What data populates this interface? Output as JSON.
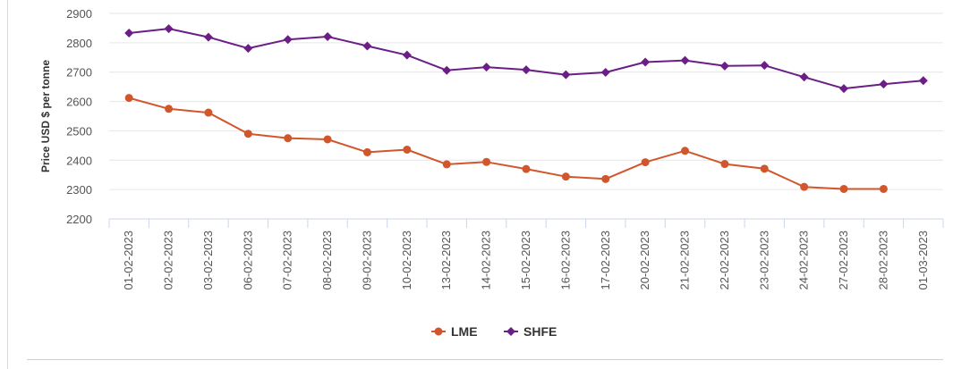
{
  "chart_data": {
    "type": "line",
    "title": "",
    "xlabel": "",
    "ylabel": "Price USD $ per tonne",
    "ylim": [
      2200,
      2900
    ],
    "yticks": [
      2200,
      2300,
      2400,
      2500,
      2600,
      2700,
      2800,
      2900
    ],
    "grid": true,
    "legend_position": "bottom-center",
    "categories": [
      "01-02-2023",
      "02-02-2023",
      "03-02-2023",
      "06-02-2023",
      "07-02-2023",
      "08-02-2023",
      "09-02-2023",
      "10-02-2023",
      "13-02-2023",
      "14-02-2023",
      "15-02-2023",
      "16-02-2023",
      "17-02-2023",
      "20-02-2023",
      "21-02-2023",
      "22-02-2023",
      "23-02-2023",
      "24-02-2023",
      "27-02-2023",
      "28-02-2023",
      "01-03-2023"
    ],
    "series": [
      {
        "name": "LME",
        "color": "#d2562b",
        "marker": "circle",
        "values": [
          2612,
          2575,
          2562,
          2490,
          2475,
          2471,
          2427,
          2436,
          2386,
          2394,
          2370,
          2344,
          2336,
          2393,
          2432,
          2387,
          2371,
          2309,
          2302,
          2302,
          null
        ]
      },
      {
        "name": "SHFE",
        "color": "#6b1f86",
        "marker": "diamond",
        "values": [
          2833,
          2848,
          2819,
          2781,
          2811,
          2821,
          2789,
          2758,
          2706,
          2717,
          2708,
          2691,
          2699,
          2734,
          2740,
          2721,
          2723,
          2683,
          2644,
          2659,
          2671
        ]
      }
    ]
  }
}
